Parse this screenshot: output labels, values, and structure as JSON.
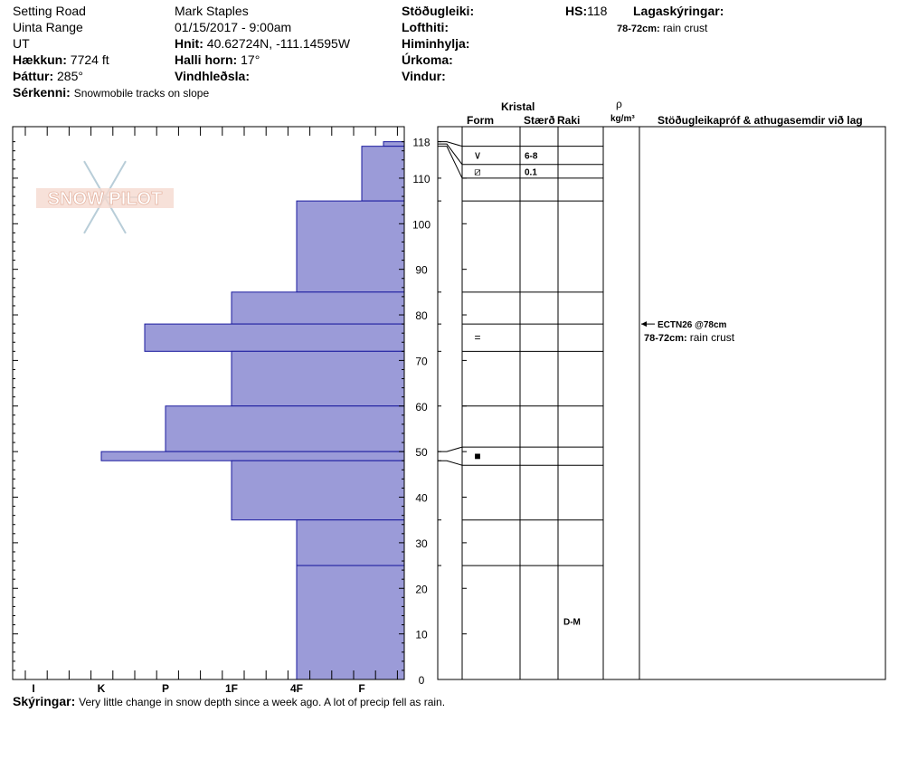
{
  "header": {
    "location": "Setting Road",
    "range": "Uinta Range",
    "state": "UT",
    "elevation_label": "Hækkun:",
    "elevation": "7724 ft",
    "aspect_label": "Þáttur:",
    "aspect": "285°",
    "features_label": "Sérkenni:",
    "features": "Snowmobile tracks on slope",
    "observer": "Mark Staples",
    "datetime": "01/15/2017 - 9:00am",
    "coords_label": "Hnit:",
    "coords": "40.62724N, -111.14595W",
    "slope_label": "Halli horn:",
    "slope": "17°",
    "wind_loading_label": "Vindhleðsla:",
    "stability_label": "Stöðugleiki:",
    "air_temp_label": "Lofthiti:",
    "sky_label": "Himinhylja:",
    "precip_label": "Úrkoma:",
    "wind_label": "Vindur:",
    "hs_label": "HS:",
    "hs_value": "118",
    "layer_notes_label": "Lagaskýringar:",
    "layer_note_range": "78-72cm:",
    "layer_note_text": "rain crust"
  },
  "table_headers": {
    "crystal": "Kristal",
    "form": "Form",
    "size": "Stærð",
    "moisture": "Raki",
    "rho": "ρ",
    "density_unit": "kg/m³",
    "tests": "Stöðugleikapróf & athugasemdir við lag"
  },
  "logo": {
    "text": "SNOW PILOT"
  },
  "chart_data": {
    "type": "snow-profile",
    "y_axis": {
      "label": "",
      "range": [
        0,
        118
      ],
      "ticks": [
        0,
        10,
        20,
        30,
        40,
        50,
        60,
        70,
        80,
        90,
        100,
        110,
        118
      ]
    },
    "x_axis": {
      "label": "",
      "ticks": [
        "I",
        "K",
        "P",
        "1F",
        "4F",
        "F"
      ]
    },
    "hardness_layers": [
      {
        "top": 118,
        "bottom": 117,
        "hardness": "F-"
      },
      {
        "top": 117,
        "bottom": 105,
        "hardness": "F"
      },
      {
        "top": 105,
        "bottom": 85,
        "hardness": "4F"
      },
      {
        "top": 85,
        "bottom": 78,
        "hardness": "1F"
      },
      {
        "top": 78,
        "bottom": 72,
        "hardness": "K+"
      },
      {
        "top": 72,
        "bottom": 60,
        "hardness": "1F"
      },
      {
        "top": 60,
        "bottom": 50,
        "hardness": "P"
      },
      {
        "top": 50,
        "bottom": 48,
        "hardness": "K-"
      },
      {
        "top": 48,
        "bottom": 35,
        "hardness": "1F"
      },
      {
        "top": 35,
        "bottom": 25,
        "hardness": "4F"
      },
      {
        "top": 25,
        "bottom": 0,
        "hardness": "4F"
      }
    ],
    "crystal_rows": [
      {
        "top": 117,
        "bottom": 113,
        "form": "∨",
        "size": "6-8"
      },
      {
        "top": 113,
        "bottom": 110,
        "form": "⧄",
        "size": "0.1"
      },
      {
        "top": 78,
        "bottom": 72,
        "form": "=",
        "size": ""
      },
      {
        "top": 51,
        "bottom": 47,
        "form": "■",
        "size": ""
      },
      {
        "top": 25,
        "bottom": 0,
        "form": "",
        "moisture": "D-M"
      }
    ],
    "stability_tests": [
      {
        "depth": 78,
        "text": "ECTN26 @78cm"
      }
    ],
    "layer_comments": [
      {
        "depth": 75,
        "range": "78-72cm:",
        "text": "rain crust"
      }
    ]
  },
  "footer": {
    "comments_label": "Skýringar:",
    "comments": "Very little change in snow depth since a week ago. A lot of precip fell as rain."
  }
}
